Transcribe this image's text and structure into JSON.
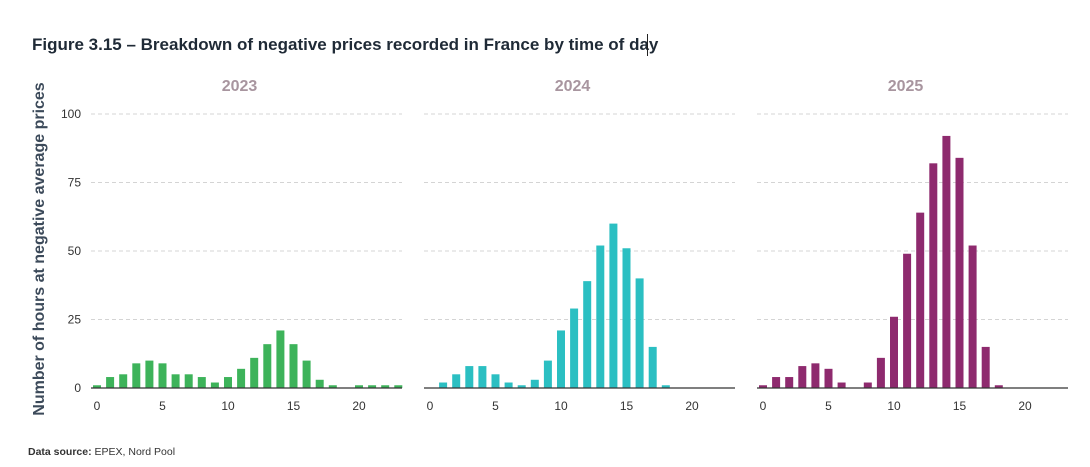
{
  "title": "Figure 3.15 – Breakdown of negative prices recorded in France by time of day",
  "source_label": "Data source:",
  "source_text": "EPEX, Nord Pool",
  "chart_data": {
    "type": "bar",
    "ylabel": "Number of hours at negative average prices",
    "ylim": [
      0,
      100
    ],
    "yticks": [
      0,
      25,
      50,
      75,
      100
    ],
    "xticks": [
      0,
      5,
      10,
      15,
      20
    ],
    "grid": true,
    "categories": [
      0,
      1,
      2,
      3,
      4,
      5,
      6,
      7,
      8,
      9,
      10,
      11,
      12,
      13,
      14,
      15,
      16,
      17,
      18,
      19,
      20,
      21,
      22,
      23
    ],
    "panels": [
      {
        "title": "2023",
        "color": "#3db35a",
        "values": [
          1,
          4,
          5,
          9,
          10,
          9,
          5,
          5,
          4,
          2,
          4,
          7,
          11,
          16,
          21,
          16,
          10,
          3,
          1,
          0,
          1,
          1,
          1,
          1
        ]
      },
      {
        "title": "2024",
        "color": "#2bbfc2",
        "values": [
          0,
          2,
          5,
          8,
          8,
          5,
          2,
          1,
          3,
          10,
          21,
          29,
          39,
          52,
          60,
          51,
          40,
          15,
          1,
          0,
          0,
          0,
          0,
          0
        ]
      },
      {
        "title": "2025",
        "color": "#8e2a6e",
        "values": [
          1,
          4,
          4,
          8,
          9,
          7,
          2,
          0,
          2,
          11,
          26,
          49,
          64,
          82,
          92,
          84,
          52,
          15,
          1,
          0,
          0,
          0,
          0,
          0
        ]
      }
    ]
  }
}
